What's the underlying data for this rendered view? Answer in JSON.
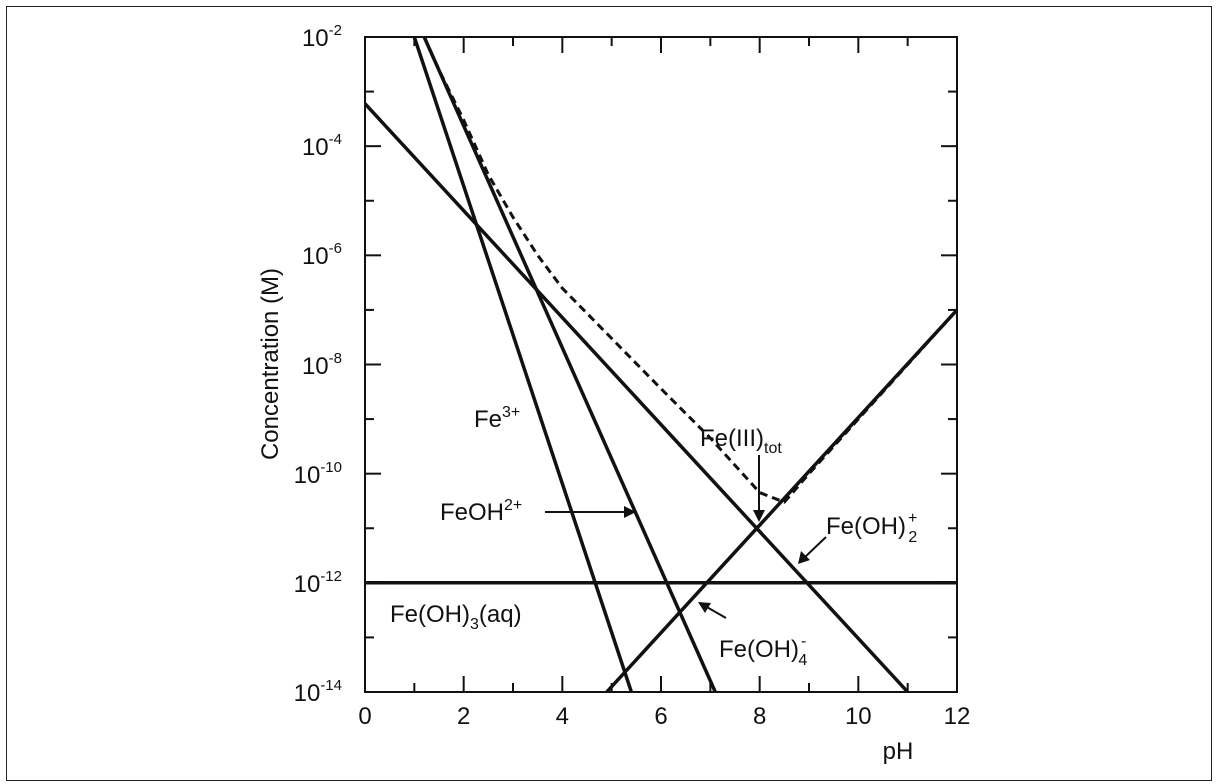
{
  "chart_data": {
    "type": "line",
    "xlabel": "pH",
    "ylabel": "Concentration (M)",
    "xlim": [
      0,
      12
    ],
    "ylim": [
      1e-14,
      0.01
    ],
    "yscale": "log",
    "x_ticks": [
      "0",
      "2",
      "4",
      "6",
      "8",
      "10",
      "12"
    ],
    "y_ticks": [
      {
        "base": "10",
        "exp": "-2",
        "value": 0.01
      },
      {
        "base": "10",
        "exp": "-4",
        "value": 0.0001
      },
      {
        "base": "10",
        "exp": "-6",
        "value": 1e-06
      },
      {
        "base": "10",
        "exp": "-8",
        "value": 1e-08
      },
      {
        "base": "10",
        "exp": "-10",
        "value": 1e-10
      },
      {
        "base": "10",
        "exp": "-12",
        "value": 1e-12
      },
      {
        "base": "10",
        "exp": "-14",
        "value": 1e-14
      }
    ],
    "grid": false,
    "series": [
      {
        "name": "Fe3+",
        "style": "solid",
        "x": [
          1.0,
          5.4
        ],
        "y": [
          0.01,
          1e-14
        ]
      },
      {
        "name": "FeOH2+",
        "style": "solid",
        "x": [
          1.2,
          7.1
        ],
        "y": [
          0.01,
          1e-14
        ]
      },
      {
        "name": "Fe(OH)2+",
        "style": "solid",
        "x": [
          0,
          11.0
        ],
        "y": [
          0.0006,
          1e-14
        ]
      },
      {
        "name": "Fe(OH)3(aq)",
        "style": "solid",
        "x": [
          0,
          12
        ],
        "y": [
          1e-12,
          1e-12
        ]
      },
      {
        "name": "Fe(OH)4-",
        "style": "solid",
        "x": [
          4.9,
          12
        ],
        "y": [
          1e-14,
          1e-07
        ]
      },
      {
        "name": "Fe(III)tot",
        "style": "dashed",
        "x": [
          1.2,
          1.5,
          2.0,
          2.5,
          3.0,
          3.5,
          4.0,
          5.0,
          6.0,
          7.0,
          8.0,
          8.5,
          9.0,
          10.0,
          11.0,
          12.0
        ],
        "y": [
          0.01,
          0.0025,
          0.0003,
          3e-05,
          5e-06,
          1e-06,
          2.5e-07,
          3e-08,
          3.6e-09,
          4.5e-10,
          4.5e-11,
          3e-11,
          1e-10,
          1e-09,
          1e-08,
          1e-07
        ]
      }
    ],
    "annotations": {
      "fe3": {
        "base": "Fe",
        "sup": "3+"
      },
      "feoh2": {
        "base": "FeOH",
        "sup": "2+"
      },
      "fetot": {
        "base": "Fe(III)",
        "sub": "tot"
      },
      "feoh2p": {
        "base": "Fe(OH)",
        "sup": "+",
        "sub": "2"
      },
      "feoh4": {
        "base": "Fe(OH)",
        "sup": "-",
        "sub": "4"
      },
      "feoh3": {
        "base": "Fe(OH)",
        "sub": "3",
        "tail": "(aq)"
      }
    }
  }
}
